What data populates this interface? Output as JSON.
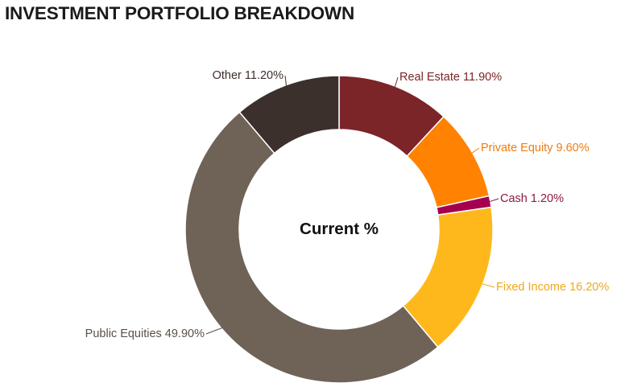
{
  "chart_data": {
    "type": "pie",
    "title": "INVESTMENT PORTFOLIO BREAKDOWN",
    "center_label": "Current %",
    "slices": [
      {
        "name": "Real Estate",
        "value": 11.9,
        "label": "Real Estate 11.90%",
        "color": "#7b2528",
        "label_color": "#7b2528"
      },
      {
        "name": "Private Equity",
        "value": 9.6,
        "label": "Private Equity 9.60%",
        "color": "#ff8200",
        "label_color": "#f07c10"
      },
      {
        "name": "Cash",
        "value": 1.2,
        "label": "Cash 1.20%",
        "color": "#a4004e",
        "label_color": "#8b1a3c"
      },
      {
        "name": "Fixed Income",
        "value": 16.2,
        "label": "Fixed Income 16.20%",
        "color": "#ffb81c",
        "label_color": "#f0a818"
      },
      {
        "name": "Public Equities",
        "value": 49.9,
        "label": "Public Equities 49.90%",
        "color": "#6f6257",
        "label_color": "#5a5048"
      },
      {
        "name": "Other",
        "value": 11.2,
        "label": "Other 11.20%",
        "color": "#3b302c",
        "label_color": "#3b302c"
      }
    ]
  }
}
